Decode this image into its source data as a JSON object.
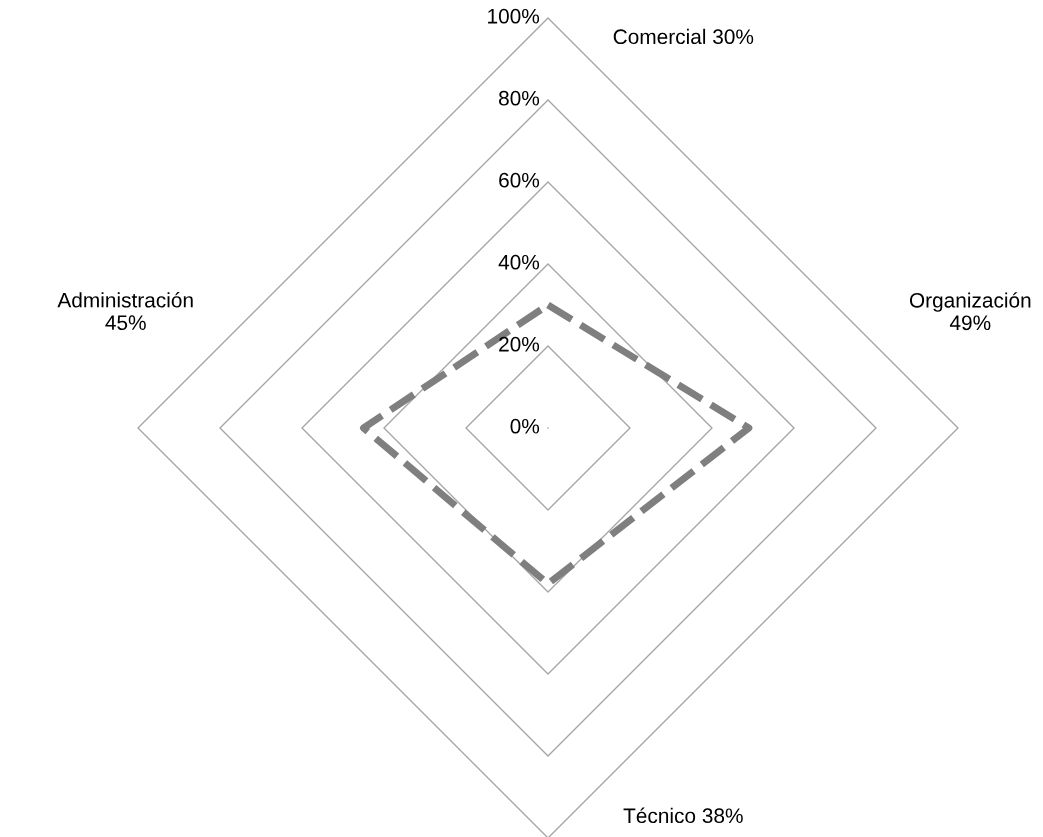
{
  "chart_data": {
    "type": "radar",
    "categories": [
      "Comercial 30%",
      "Organización\n49%",
      "Técnico 38%",
      "Administración\n45%"
    ],
    "series": [
      {
        "color": "#7f7f7f",
        "values": [
          30,
          49,
          38,
          45
        ]
      }
    ],
    "ylim": [
      0,
      100
    ],
    "yticks": [
      {
        "value": 0,
        "label": "0%"
      },
      {
        "value": 20,
        "label": "20%"
      },
      {
        "value": 40,
        "label": "40%"
      },
      {
        "value": 60,
        "label": "60%"
      },
      {
        "value": 80,
        "label": "80%"
      },
      {
        "value": 100,
        "label": "100%"
      }
    ],
    "line_style": "dashed",
    "marker": "none",
    "grid": true
  }
}
